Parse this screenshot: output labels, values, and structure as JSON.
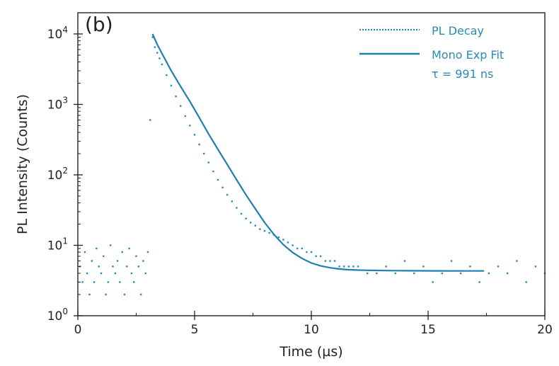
{
  "chart_data": {
    "type": "scatter",
    "panel_label": "(b)",
    "title": "",
    "xlabel": "Time (µs)",
    "ylabel": "PL Intensity (Counts)",
    "xlim": [
      0,
      20
    ],
    "ylim": [
      1,
      20000
    ],
    "yscale": "log",
    "x_ticks": [
      0,
      5,
      10,
      15,
      20
    ],
    "y_ticks": [
      {
        "base": "10",
        "exp": "0",
        "value": 1
      },
      {
        "base": "10",
        "exp": "1",
        "value": 10
      },
      {
        "base": "10",
        "exp": "2",
        "value": 100
      },
      {
        "base": "10",
        "exp": "3",
        "value": 1000
      },
      {
        "base": "10",
        "exp": "4",
        "value": 10000
      }
    ],
    "grid": false,
    "legend_position": "top-right",
    "colors": {
      "data": "#2a8ab8",
      "fit": "#1f7fb0",
      "axis": "#222222"
    },
    "series": [
      {
        "name": "PL Decay",
        "style": "dotted",
        "x": [
          0.1,
          0.2,
          0.3,
          0.4,
          0.5,
          0.6,
          0.7,
          0.8,
          0.9,
          1.0,
          1.1,
          1.2,
          1.3,
          1.4,
          1.5,
          1.6,
          1.7,
          1.8,
          1.9,
          2.0,
          2.1,
          2.2,
          2.3,
          2.4,
          2.5,
          2.6,
          2.7,
          2.8,
          2.9,
          3.0,
          3.1,
          3.2,
          3.3,
          3.4,
          3.5,
          3.6,
          3.8,
          4.0,
          4.2,
          4.4,
          4.6,
          4.8,
          5.0,
          5.2,
          5.4,
          5.6,
          5.8,
          6.0,
          6.2,
          6.4,
          6.6,
          6.8,
          7.0,
          7.2,
          7.4,
          7.6,
          7.8,
          8.0,
          8.2,
          8.4,
          8.6,
          8.8,
          9.0,
          9.2,
          9.4,
          9.6,
          9.8,
          10.0,
          10.2,
          10.4,
          10.6,
          10.8,
          11.0,
          11.2,
          11.4,
          11.6,
          11.8,
          12.0,
          12.4,
          12.8,
          13.2,
          13.6,
          14.0,
          14.4,
          14.8,
          15.2,
          15.6,
          16.0,
          16.4,
          16.8,
          17.2,
          17.6,
          18.0,
          18.4,
          18.8,
          19.2,
          19.6,
          20.0
        ],
        "y": [
          5,
          3,
          8,
          4,
          2,
          6,
          3,
          9,
          5,
          4,
          7,
          2,
          3,
          10,
          5,
          4,
          6,
          3,
          8,
          2,
          5,
          9,
          4,
          3,
          7,
          5,
          2,
          6,
          4,
          8,
          600,
          9000,
          6500,
          5400,
          4500,
          3700,
          2600,
          1850,
          1300,
          950,
          680,
          500,
          370,
          270,
          200,
          150,
          112,
          85,
          66,
          52,
          42,
          34,
          28,
          24,
          21,
          19,
          17,
          16,
          15,
          14,
          13,
          12,
          11,
          10,
          9,
          9,
          8,
          8,
          7,
          7,
          6,
          6,
          6,
          5,
          5,
          5,
          5,
          5,
          4,
          4,
          5,
          4,
          6,
          4,
          5,
          3,
          4,
          6,
          4,
          5,
          3,
          4,
          5,
          4,
          6,
          3,
          5,
          4
        ]
      },
      {
        "name": "Mono Exp Fit",
        "style": "solid",
        "x": [
          3.2,
          3.4,
          3.6,
          3.8,
          4.0,
          4.4,
          4.8,
          5.2,
          5.6,
          6.0,
          6.4,
          6.8,
          7.2,
          7.6,
          8.0,
          8.4,
          8.8,
          9.2,
          9.6,
          10.0,
          10.4,
          10.8,
          11.2,
          11.6,
          12.0,
          12.4,
          12.8,
          13.2,
          13.6,
          14.0,
          14.4,
          14.8,
          15.2,
          15.6,
          16.0,
          16.4,
          16.8,
          17.2,
          17.4
        ],
        "y": [
          10000,
          7100,
          5300,
          4000,
          3000,
          1800,
          1100,
          650,
          380,
          230,
          140,
          85,
          52,
          33,
          21,
          14.2,
          10.2,
          7.9,
          6.5,
          5.6,
          5.1,
          4.8,
          4.6,
          4.5,
          4.45,
          4.42,
          4.4,
          4.38,
          4.37,
          4.36,
          4.35,
          4.35,
          4.34,
          4.34,
          4.33,
          4.33,
          4.33,
          4.33,
          4.33
        ]
      }
    ],
    "annotations": [
      {
        "text": "τ = 991 ns"
      }
    ]
  }
}
